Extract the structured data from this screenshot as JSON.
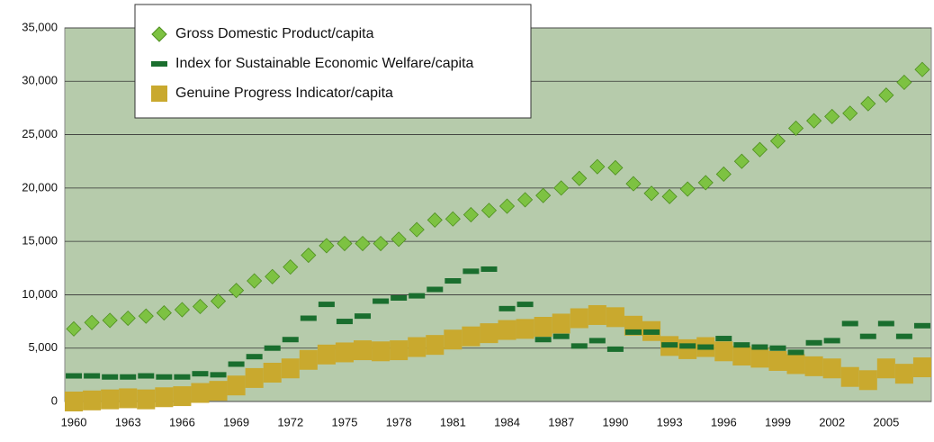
{
  "chart_data": {
    "type": "mixed",
    "categories": [
      "1960",
      null,
      null,
      "1963",
      null,
      null,
      "1966",
      null,
      null,
      "1969",
      null,
      null,
      "1972",
      null,
      null,
      "1975",
      null,
      null,
      "1978",
      null,
      null,
      "1981",
      null,
      null,
      "1984",
      null,
      null,
      "1987",
      null,
      null,
      "1990",
      null,
      null,
      "1993",
      null,
      null,
      "1996",
      null,
      null,
      "1999",
      null,
      null,
      "2002",
      null,
      null,
      "2005",
      null,
      null
    ],
    "series": [
      {
        "name": "Gross Domestic Product/capita",
        "color": "#7dc242",
        "marker": "diamond",
        "values": [
          6800,
          7400,
          7600,
          7800,
          8000,
          8300,
          8600,
          8900,
          9400,
          10400,
          11300,
          11700,
          12600,
          13700,
          14600,
          14800,
          14800,
          14800,
          15200,
          16100,
          17000,
          17100,
          17500,
          17900,
          18300,
          18900,
          19300,
          20000,
          20900,
          22000,
          21900,
          20400,
          19500,
          19200,
          19900,
          20500,
          21300,
          22500,
          23600,
          24400,
          25600,
          26300,
          26700,
          27000,
          27900,
          28700,
          29900,
          31100
        ]
      },
      {
        "name": "Index for Sustainable Economic Welfare/capita",
        "color": "#1a6e2e",
        "marker": "dash",
        "values": [
          2400,
          2400,
          2300,
          2300,
          2400,
          2300,
          2300,
          2600,
          2500,
          3500,
          4200,
          5000,
          5800,
          7800,
          9100,
          7500,
          8000,
          9400,
          9700,
          9900,
          10500,
          11300,
          12200,
          12400,
          8700,
          9100,
          5800,
          6100,
          5200,
          5700,
          4900,
          6500,
          6500,
          5300,
          5200,
          5100,
          5900,
          5300,
          5100,
          5000,
          4600,
          5500,
          5700,
          7300,
          6100,
          7300,
          6100,
          7100
        ]
      },
      {
        "name": "Genuine Progress Indicator/capita",
        "color": "#c9a92e",
        "marker": "block",
        "values": [
          0,
          100,
          200,
          300,
          200,
          400,
          500,
          800,
          1000,
          1500,
          2200,
          2700,
          3100,
          3900,
          4400,
          4600,
          4800,
          4700,
          4800,
          5100,
          5300,
          5800,
          6100,
          6400,
          6700,
          6800,
          7000,
          7300,
          7800,
          8100,
          7900,
          7100,
          6600,
          5200,
          4900,
          5100,
          4700,
          4300,
          4100,
          3800,
          3500,
          3300,
          3100,
          2300,
          2000,
          3100,
          2600,
          3200
        ]
      }
    ],
    "ylim": [
      0,
      35000
    ],
    "yticks": [
      0,
      {
        "value": 5000,
        "label": "5,000"
      },
      {
        "value": 10000,
        "label": "10,000"
      },
      {
        "value": 15000,
        "label": "15,000"
      },
      {
        "value": 20000,
        "label": "20,000"
      },
      {
        "value": 25000,
        "label": "25,000"
      },
      {
        "value": 30000,
        "label": "30,000"
      },
      {
        "value": 35000,
        "label": "35,000"
      }
    ],
    "grid": true,
    "legend": "top-left",
    "background": "#b6cbab"
  }
}
